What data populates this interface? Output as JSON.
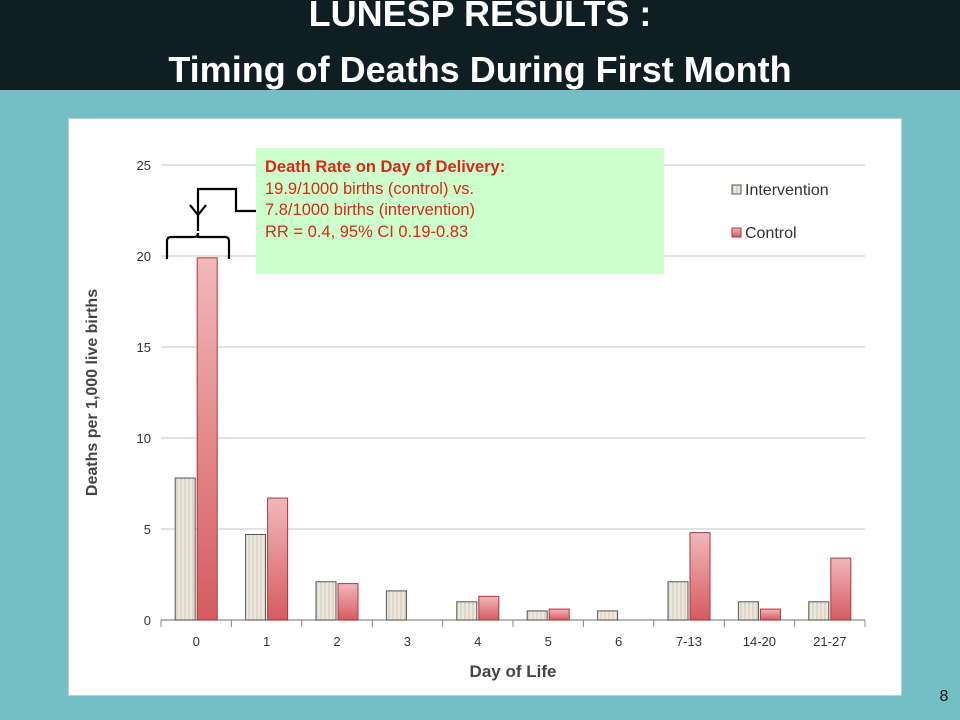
{
  "slide": {
    "title_line1": "LUNESP RESULTS :",
    "title_line2": "Timing of Deaths During First Month",
    "number": "8"
  },
  "callout": {
    "heading": "Death Rate on Day of Delivery:",
    "line1": "19.9/1000 births (control)  vs.",
    "line2": "7.8/1000 births (intervention)",
    "line3": "RR = 0.4, 95% CI 0.19-0.83"
  },
  "chart_data": {
    "type": "bar",
    "categories": [
      "0",
      "1",
      "2",
      "3",
      "4",
      "5",
      "6",
      "7-13",
      "14-20",
      "21-27"
    ],
    "series": [
      {
        "name": "Intervention",
        "values": [
          7.8,
          4.7,
          2.1,
          1.6,
          1.0,
          0.5,
          0.5,
          2.1,
          1.0,
          1.0
        ],
        "color": "#ebe5da"
      },
      {
        "name": "Control",
        "values": [
          19.9,
          6.7,
          2.0,
          0,
          1.3,
          0.6,
          0,
          4.8,
          0.6,
          3.4
        ],
        "color": "#df6e71"
      }
    ],
    "title": "",
    "xlabel": "Day of Life",
    "ylabel": "Deaths per 1,000 live births",
    "ylim": [
      0,
      25
    ],
    "yticks": [
      0,
      5,
      10,
      15,
      20,
      25
    ],
    "grid": true,
    "legend": "top-right"
  }
}
